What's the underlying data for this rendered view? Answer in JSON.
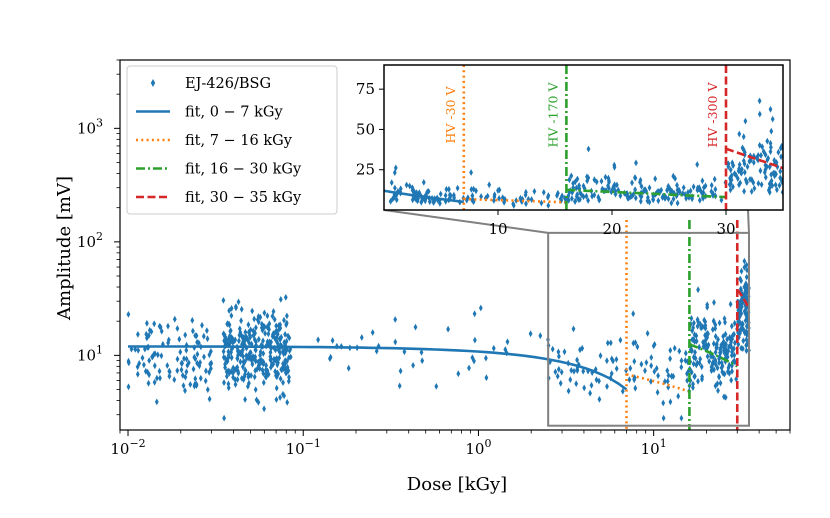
{
  "chart_data": {
    "type": "scatter",
    "xscale": "log",
    "yscale": "log",
    "xlabel": "Dose [kGy]",
    "ylabel": "Amplitude [mV]",
    "xlim": [
      0.009,
      60
    ],
    "ylim": [
      2.2,
      4000
    ],
    "xticks": [
      {
        "value": 0.01,
        "base": "10",
        "exp": "−2"
      },
      {
        "value": 0.1,
        "base": "10",
        "exp": "−1"
      },
      {
        "value": 1,
        "base": "10",
        "exp": "0"
      },
      {
        "value": 10,
        "base": "10",
        "exp": "1"
      }
    ],
    "yticks": [
      {
        "value": 10,
        "base": "10",
        "exp": "1"
      },
      {
        "value": 100,
        "base": "10",
        "exp": "2"
      },
      {
        "value": 1000,
        "base": "10",
        "exp": "3"
      }
    ],
    "legend_position": "top-left",
    "scatter": {
      "name": "EJ-426/BSG",
      "color": "#1f77b4",
      "marker": "thin-diamond",
      "clusters": [
        {
          "x_range": [
            0.01,
            0.03
          ],
          "y_center": 10,
          "count": 110
        },
        {
          "x_range": [
            0.035,
            0.085
          ],
          "y_center": 10.5,
          "count": 320
        },
        {
          "x_range": [
            0.1,
            2.5
          ],
          "y_center": 11,
          "count": 40
        },
        {
          "x_range": [
            2.5,
            7
          ],
          "y_center": 7.5,
          "count": 50
        },
        {
          "x_range": [
            7,
            16
          ],
          "y_center": 7,
          "count": 50
        },
        {
          "x_range": [
            16,
            30
          ],
          "y_center": 11,
          "count": 170
        },
        {
          "x_range": [
            30,
            35
          ],
          "y_center": 25,
          "count": 110
        }
      ]
    },
    "fits": [
      {
        "label": "fit, 0 − 7 kGy",
        "color": "#1f77b4",
        "style": "solid",
        "x_range": [
          0.01,
          7
        ],
        "y_start": 12,
        "y_end": 5
      },
      {
        "label": "fit, 7 − 16 kGy",
        "color": "#ff7f0e",
        "style": "dotted",
        "x_range": [
          7,
          16
        ],
        "y_start": 6.8,
        "y_end": 4.8
      },
      {
        "label": "fit, 16 − 30 kGy",
        "color": "#2ca02c",
        "style": "dashdot",
        "x_range": [
          16,
          30
        ],
        "y_start": 12.5,
        "y_end": 8
      },
      {
        "label": "fit, 30 − 35 kGy",
        "color": "#d62728",
        "style": "dashed",
        "x_range": [
          30,
          35
        ],
        "y_start": 38,
        "y_end": 26
      }
    ],
    "hv_lines": [
      {
        "x": 7,
        "label": "HV -30 V",
        "color": "#ff7f0e",
        "style": "dotted"
      },
      {
        "x": 16,
        "label": "HV -170 V",
        "color": "#2ca02c",
        "style": "dashdot"
      },
      {
        "x": 30,
        "label": "HV -300 V",
        "color": "#d62728",
        "style": "dashed"
      }
    ],
    "inset": {
      "xscale": "linear",
      "yscale": "linear",
      "xlim": [
        0,
        35
      ],
      "ylim": [
        0,
        90
      ],
      "xticks": [
        10,
        20,
        30
      ],
      "yticks": [
        25,
        50,
        75
      ],
      "zoom_region": {
        "x": [
          2.5,
          35
        ],
        "y": [
          2.4,
          120
        ]
      }
    }
  }
}
